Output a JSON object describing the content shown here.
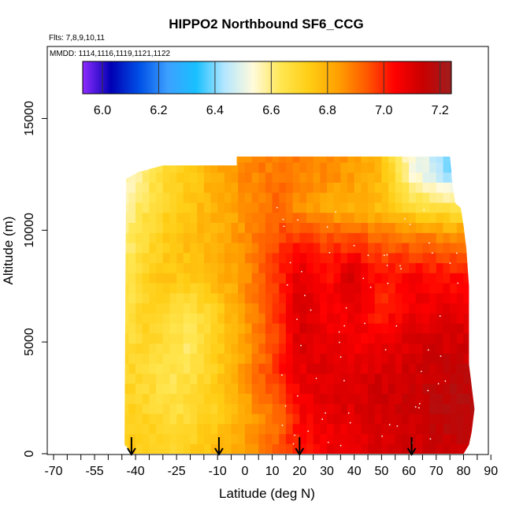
{
  "chart_data": {
    "type": "heatmap",
    "title": "HIPPO2 Northbound SF6_CCG",
    "annotations": {
      "flights": "Flts: 7,8,9,10,11",
      "dates": "MMDD: 1114,1116,1119,1121,1122"
    },
    "xlabel": "Latitude (deg N)",
    "ylabel": "Altitude (m)",
    "xlim": [
      -70,
      90
    ],
    "ylim": [
      0,
      18000
    ],
    "x_ticks": [
      -70,
      -55,
      -40,
      -25,
      -10,
      0,
      10,
      20,
      30,
      40,
      50,
      60,
      70,
      80,
      90
    ],
    "x_tick_labels": [
      "-70",
      "-55",
      "-40",
      "-25",
      "-10",
      "0",
      "10",
      "20",
      "30",
      "40",
      "50",
      "60",
      "70",
      "80",
      "90"
    ],
    "y_ticks": [
      0,
      5000,
      10000,
      15000
    ],
    "y_tick_labels": [
      "0",
      "5000",
      "10000",
      "15000"
    ],
    "colorbar": {
      "range": [
        5.93,
        7.24
      ],
      "ticks": [
        6.0,
        6.2,
        6.4,
        6.6,
        6.8,
        7.0,
        7.2
      ],
      "tick_labels": [
        "6.0",
        "6.2",
        "6.4",
        "6.6",
        "6.8",
        "7.0",
        "7.2"
      ],
      "colors": [
        "#8f2cff",
        "#0000b4",
        "#0050e6",
        "#3ca0ff",
        "#19c0ff",
        "#b4e6ff",
        "#fffadc",
        "#ffe650",
        "#ffcd14",
        "#ffa000",
        "#ff5a00",
        "#ff0000",
        "#c80000",
        "#a01e1e"
      ]
    },
    "flight_markers_lat": [
      -41.5,
      -9.5,
      20,
      61
    ],
    "field": {
      "lat_coverage": [
        -44,
        82
      ],
      "alt_coverage": [
        0,
        13300
      ],
      "ncols": 14,
      "nrows": 9,
      "lat_centers": [
        -42,
        -35,
        -28,
        -20,
        -12,
        -4,
        4,
        12,
        20,
        30,
        40,
        50,
        60,
        75
      ],
      "alt_centers": [
        12500,
        11000,
        9500,
        8000,
        6500,
        5000,
        3500,
        2000,
        500
      ],
      "values": [
        [
          6.55,
          6.62,
          6.7,
          6.74,
          6.8,
          6.85,
          6.88,
          6.9,
          6.88,
          6.86,
          6.84,
          6.78,
          6.55,
          6.4
        ],
        [
          6.58,
          6.66,
          6.72,
          6.76,
          6.79,
          6.82,
          6.88,
          6.92,
          6.86,
          6.82,
          6.8,
          6.76,
          6.7,
          6.66
        ],
        [
          6.62,
          6.7,
          6.74,
          6.78,
          6.8,
          6.84,
          6.9,
          6.96,
          7.0,
          6.96,
          6.98,
          6.94,
          6.92,
          6.9
        ],
        [
          6.64,
          6.72,
          6.76,
          6.74,
          6.78,
          6.82,
          6.9,
          6.98,
          7.1,
          7.02,
          7.12,
          7.0,
          7.05,
          7.02
        ],
        [
          6.66,
          6.72,
          6.7,
          6.66,
          6.72,
          6.8,
          6.9,
          6.98,
          7.12,
          7.05,
          7.08,
          7.0,
          7.06,
          7.08
        ],
        [
          6.68,
          6.7,
          6.66,
          6.62,
          6.7,
          6.78,
          6.88,
          6.98,
          7.1,
          7.08,
          7.04,
          7.06,
          7.1,
          7.12
        ],
        [
          6.7,
          6.68,
          6.64,
          6.66,
          6.72,
          6.8,
          6.9,
          7.0,
          7.08,
          7.1,
          7.1,
          7.12,
          7.12,
          7.16
        ],
        [
          6.72,
          6.7,
          6.66,
          6.68,
          6.72,
          6.78,
          6.86,
          6.9,
          7.04,
          7.08,
          7.1,
          7.12,
          7.14,
          7.18
        ],
        [
          6.74,
          6.72,
          6.7,
          6.72,
          6.76,
          6.8,
          6.86,
          6.94,
          7.02,
          7.06,
          7.08,
          7.1,
          7.12,
          7.14
        ]
      ]
    }
  }
}
